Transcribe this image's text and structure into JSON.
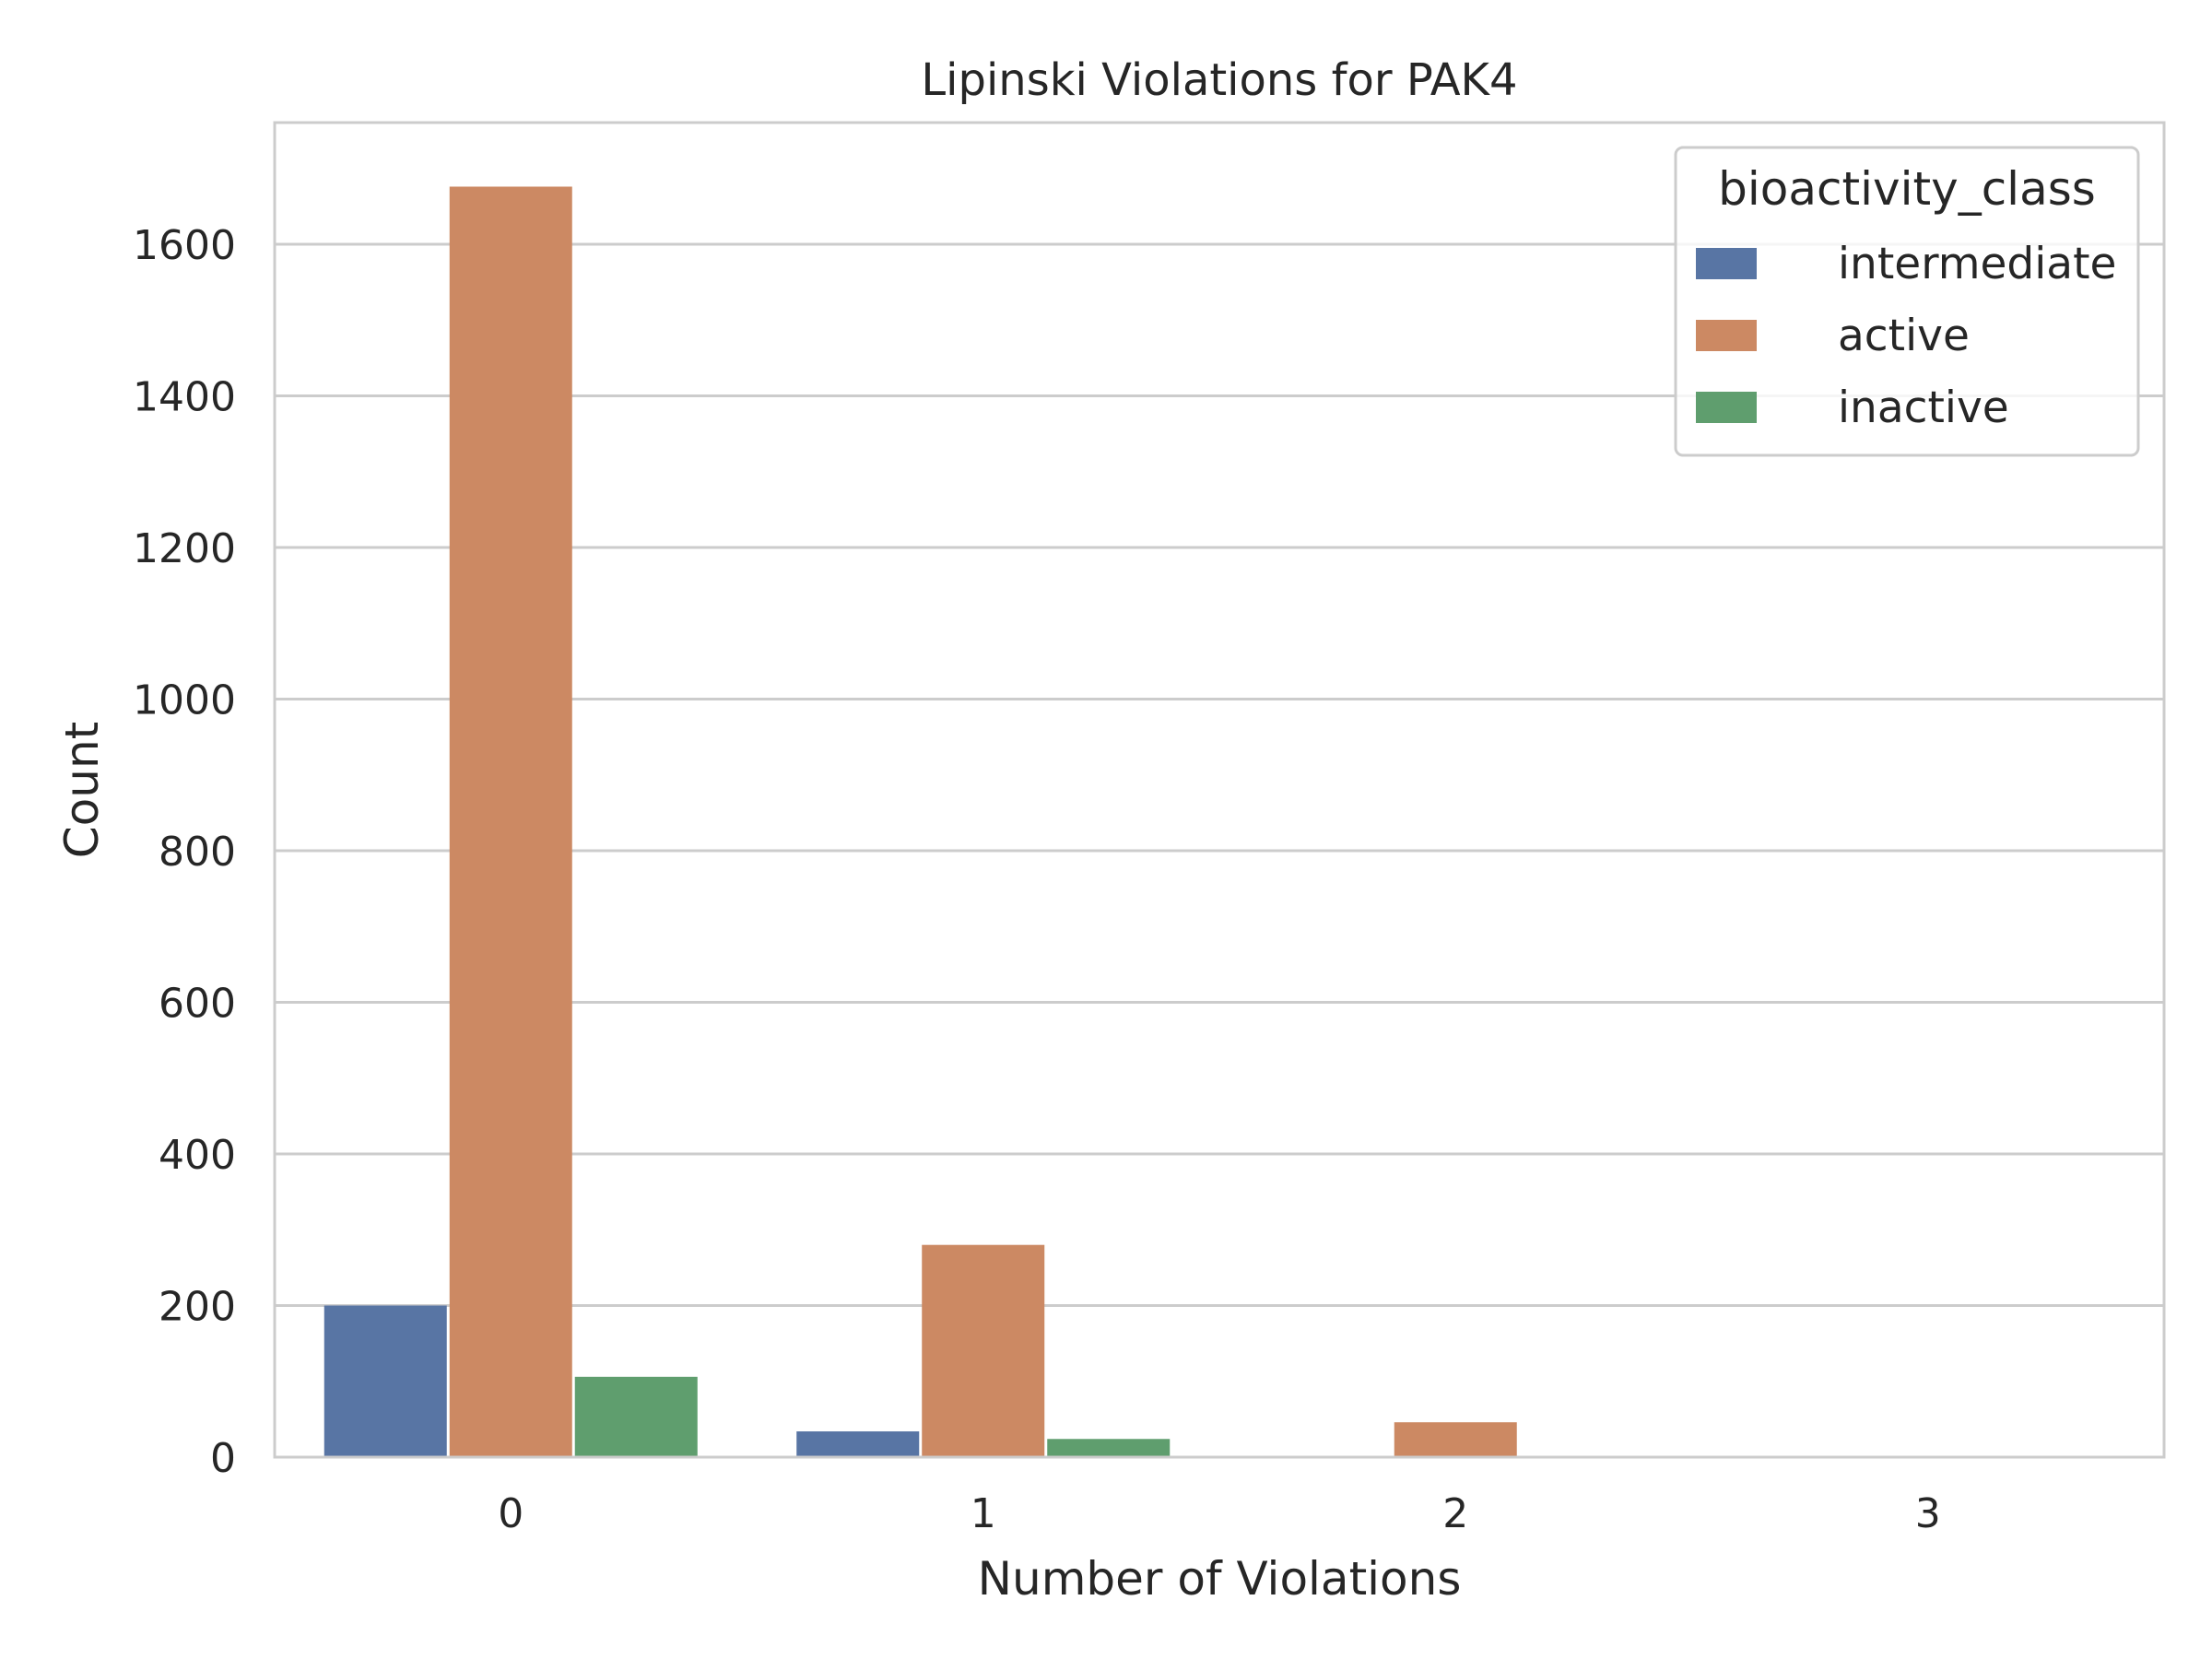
{
  "chart_data": {
    "type": "bar",
    "title": "Lipinski Violations for PAK4",
    "xlabel": "Number of Violations",
    "ylabel": "Count",
    "categories": [
      "0",
      "1",
      "2",
      "3"
    ],
    "ylim": [
      0,
      1760
    ],
    "yticks": [
      0,
      200,
      400,
      600,
      800,
      1000,
      1200,
      1400,
      1600
    ],
    "grid": true,
    "legend": {
      "title": "bioactivity_class",
      "placement": "top-right"
    },
    "series": [
      {
        "name": "intermediate",
        "color": "#5875a4",
        "values": [
          200,
          34,
          0,
          0
        ]
      },
      {
        "name": "active",
        "color": "#cc8963",
        "values": [
          1676,
          280,
          46,
          1
        ]
      },
      {
        "name": "inactive",
        "color": "#5f9e6e",
        "values": [
          106,
          24,
          0,
          0
        ]
      }
    ]
  }
}
